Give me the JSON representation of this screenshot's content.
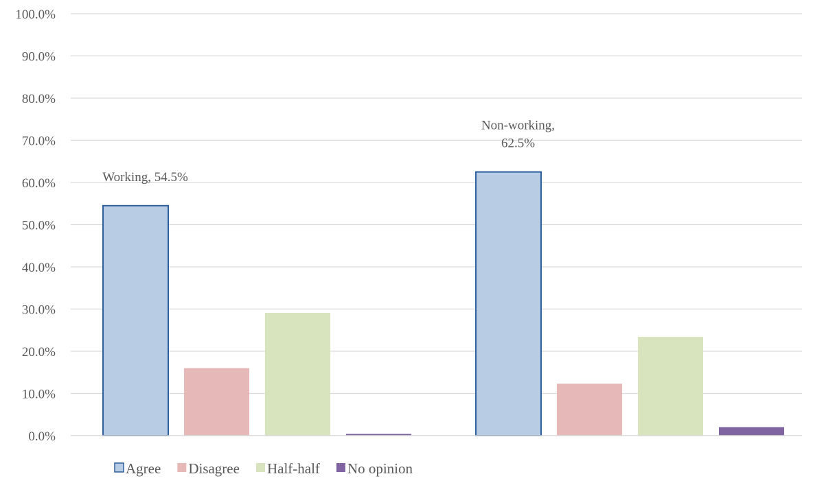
{
  "chart_data": {
    "type": "bar",
    "categories": [
      "Working",
      "Non-working"
    ],
    "series": [
      {
        "name": "Agree",
        "values": [
          54.5,
          62.5
        ],
        "color": "#b8cce4",
        "stroke": "#2e5f9e"
      },
      {
        "name": "Disagree",
        "values": [
          16.0,
          12.3
        ],
        "color": "#e6b9b8",
        "stroke": null
      },
      {
        "name": "Half-half",
        "values": [
          29.1,
          23.4
        ],
        "color": "#d7e4bd",
        "stroke": null
      },
      {
        "name": "No opinion",
        "values": [
          0.4,
          2.0
        ],
        "color": "#8064a2",
        "stroke": null
      }
    ],
    "yticks": [
      "0.0%",
      "10.0%",
      "20.0%",
      "30.0%",
      "40.0%",
      "50.0%",
      "60.0%",
      "70.0%",
      "80.0%",
      "90.0%",
      "100.0%"
    ],
    "ylim": [
      0,
      100
    ],
    "grid": true,
    "legend_position": "bottom-left",
    "data_labels": [
      {
        "series": "Agree",
        "category": "Working",
        "lines": [
          "Working, 54.5%"
        ]
      },
      {
        "series": "Agree",
        "category": "Non-working",
        "lines": [
          "Non-working,",
          "62.5%"
        ]
      }
    ],
    "title": "",
    "xlabel": "",
    "ylabel": ""
  }
}
